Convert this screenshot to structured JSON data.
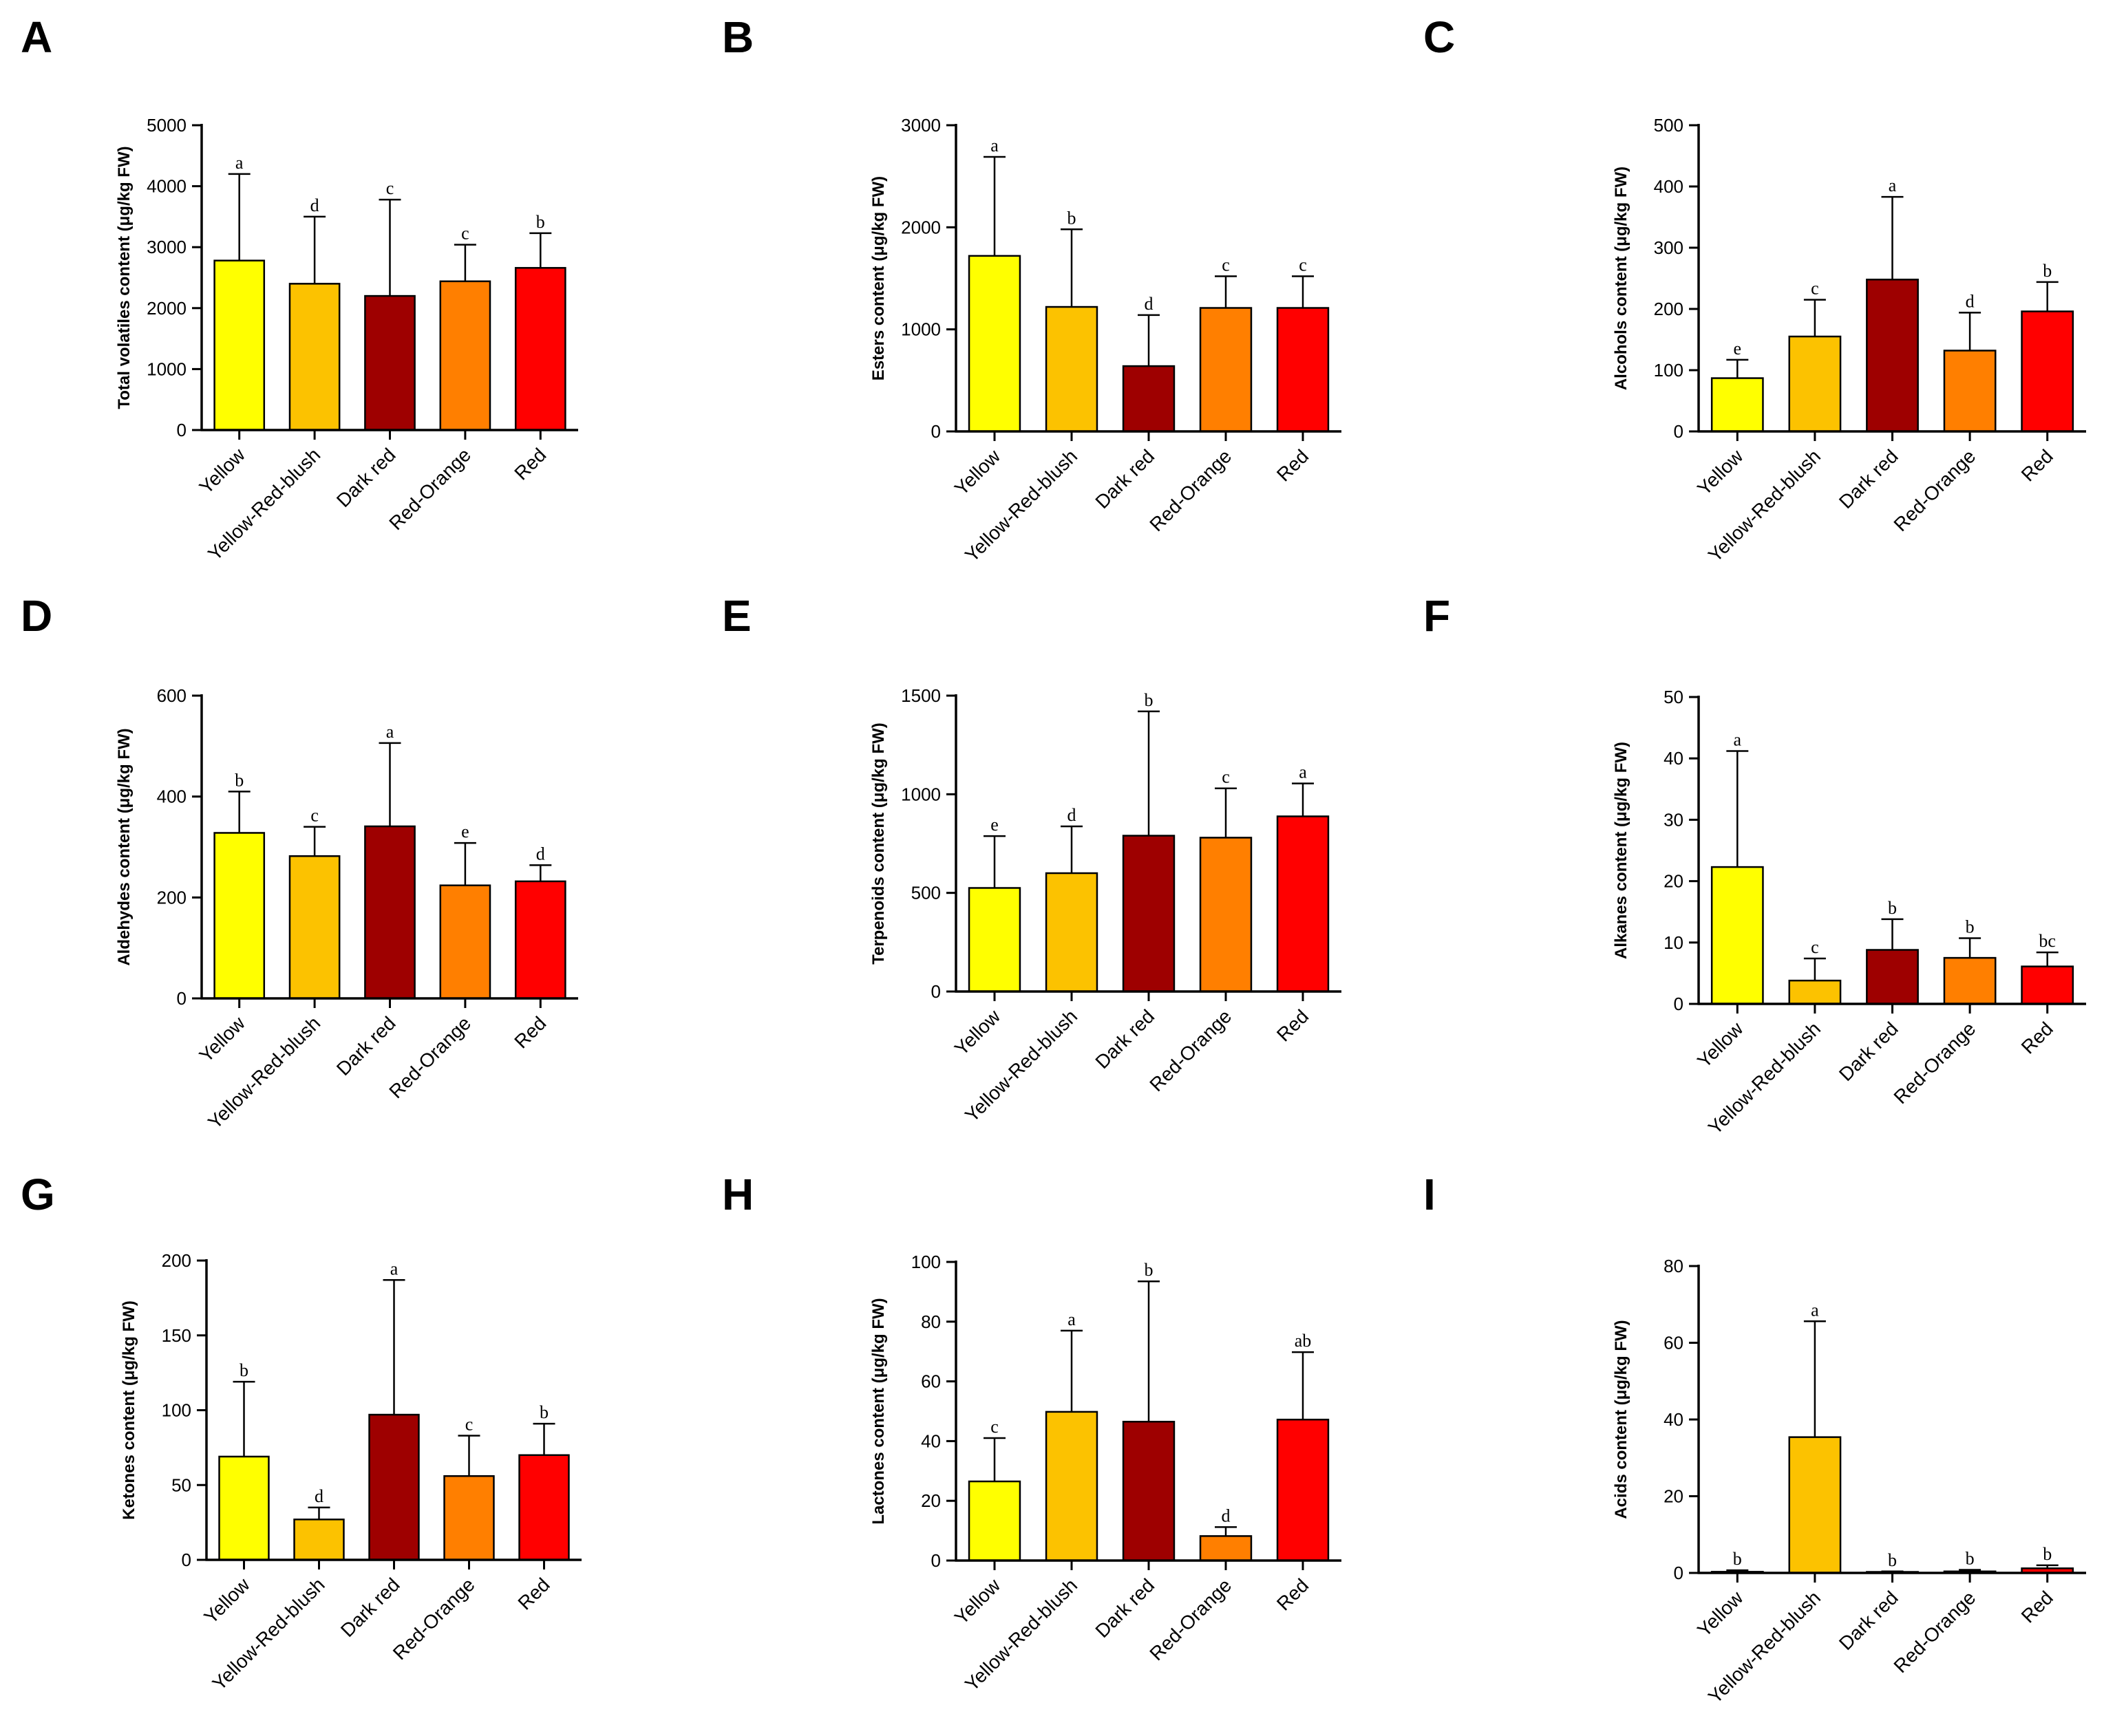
{
  "panel_letters": [
    "A",
    "B",
    "C",
    "D",
    "E",
    "F",
    "G",
    "H",
    "I"
  ],
  "categories": [
    "Yellow",
    "Yellow-Red-blush",
    "Dark red",
    "Red-Orange",
    "Red"
  ],
  "colors": [
    "#ffff00",
    "#fcc200",
    "#9e0000",
    "#ff7f00",
    "#ff0000"
  ],
  "chart_data": [
    {
      "type": "bar",
      "panel": "A",
      "ylabel": "Total volatiles content (μg/kg FW)",
      "ylim": [
        0,
        5000
      ],
      "yticks": [
        0,
        1000,
        2000,
        3000,
        4000,
        5000
      ],
      "categories": [
        "Yellow",
        "Yellow-Red-blush",
        "Dark red",
        "Red-Orange",
        "Red"
      ],
      "values": [
        2780,
        2400,
        2200,
        2440,
        2660
      ],
      "errors": [
        1420,
        1100,
        1580,
        600,
        570
      ],
      "letters": [
        "a",
        "d",
        "c",
        "c",
        "b"
      ]
    },
    {
      "type": "bar",
      "panel": "B",
      "ylabel": "Esters content (μg/kg FW)",
      "ylim": [
        0,
        3000
      ],
      "yticks": [
        0,
        1000,
        2000,
        3000
      ],
      "categories": [
        "Yellow",
        "Yellow-Red-blush",
        "Dark red",
        "Red-Orange",
        "Red"
      ],
      "values": [
        1720,
        1220,
        640,
        1210,
        1210
      ],
      "errors": [
        970,
        760,
        500,
        310,
        310
      ],
      "letters": [
        "a",
        "b",
        "d",
        "c",
        "c"
      ]
    },
    {
      "type": "bar",
      "panel": "C",
      "ylabel": "Alcohols content (μg/kg FW)",
      "ylim": [
        0,
        500
      ],
      "yticks": [
        0,
        100,
        200,
        300,
        400,
        500
      ],
      "categories": [
        "Yellow",
        "Yellow-Red-blush",
        "Dark red",
        "Red-Orange",
        "Red"
      ],
      "values": [
        87,
        155,
        248,
        132,
        196
      ],
      "errors": [
        30,
        60,
        135,
        62,
        48
      ],
      "letters": [
        "e",
        "c",
        "a",
        "d",
        "b"
      ]
    },
    {
      "type": "bar",
      "panel": "D",
      "ylabel": "Aldehydes content (μg/kg FW)",
      "ylim": [
        0,
        600
      ],
      "yticks": [
        0,
        200,
        400,
        600
      ],
      "categories": [
        "Yellow",
        "Yellow-Red-blush",
        "Dark red",
        "Red-Orange",
        "Red"
      ],
      "values": [
        328,
        282,
        341,
        224,
        232
      ],
      "errors": [
        82,
        58,
        165,
        84,
        32
      ],
      "letters": [
        "b",
        "c",
        "a",
        "e",
        "d"
      ]
    },
    {
      "type": "bar",
      "panel": "E",
      "ylabel": "Terpenoids content (μg/kg FW)",
      "ylim": [
        0,
        1500
      ],
      "yticks": [
        0,
        500,
        1000,
        1500
      ],
      "categories": [
        "Yellow",
        "Yellow-Red-blush",
        "Dark red",
        "Red-Orange",
        "Red"
      ],
      "values": [
        525,
        600,
        790,
        780,
        888
      ],
      "errors": [
        263,
        237,
        630,
        250,
        167
      ],
      "letters": [
        "e",
        "d",
        "b",
        "c",
        "a"
      ]
    },
    {
      "type": "bar",
      "panel": "F",
      "ylabel": "Alkanes content (μg/kg FW)",
      "ylim": [
        0,
        50
      ],
      "yticks": [
        0,
        10,
        20,
        30,
        40,
        50
      ],
      "categories": [
        "Yellow",
        "Yellow-Red-blush",
        "Dark red",
        "Red-Orange",
        "Red"
      ],
      "values": [
        22.3,
        3.8,
        8.8,
        7.5,
        6.1
      ],
      "errors": [
        18.9,
        3.6,
        5.0,
        3.2,
        2.3
      ],
      "letters": [
        "a",
        "c",
        "b",
        "b",
        "bc"
      ]
    },
    {
      "type": "bar",
      "panel": "G",
      "ylabel": "Ketones content (μg/kg FW)",
      "ylim": [
        0,
        200
      ],
      "yticks": [
        0,
        50,
        100,
        150,
        200
      ],
      "categories": [
        "Yellow",
        "Yellow-Red-blush",
        "Dark red",
        "Red-Orange",
        "Red"
      ],
      "values": [
        69,
        27,
        97,
        56,
        70
      ],
      "errors": [
        50,
        8,
        90,
        27,
        21
      ],
      "letters": [
        "b",
        "d",
        "a",
        "c",
        "b"
      ]
    },
    {
      "type": "bar",
      "panel": "H",
      "ylabel": "Lactones content (μg/kg FW)",
      "ylim": [
        0,
        100
      ],
      "yticks": [
        0,
        20,
        40,
        60,
        80,
        100
      ],
      "categories": [
        "Yellow",
        "Yellow-Red-blush",
        "Dark red",
        "Red-Orange",
        "Red"
      ],
      "values": [
        26.5,
        49.8,
        46.5,
        8.2,
        47.2
      ],
      "errors": [
        14.5,
        27.2,
        47.0,
        3.0,
        22.6
      ],
      "letters": [
        "c",
        "a",
        "b",
        "d",
        "ab"
      ]
    },
    {
      "type": "bar",
      "panel": "I",
      "ylabel": "Acids content (μg/kg FW)",
      "ylim": [
        0,
        80
      ],
      "yticks": [
        0,
        20,
        40,
        60,
        80
      ],
      "categories": [
        "Yellow",
        "Yellow-Red-blush",
        "Dark red",
        "Red-Orange",
        "Red"
      ],
      "values": [
        0.3,
        35.4,
        0.2,
        0.4,
        1.2
      ],
      "errors": [
        0.4,
        30.2,
        0.2,
        0.4,
        0.8
      ],
      "letters": [
        "b",
        "a",
        "b",
        "b",
        "b"
      ]
    }
  ]
}
